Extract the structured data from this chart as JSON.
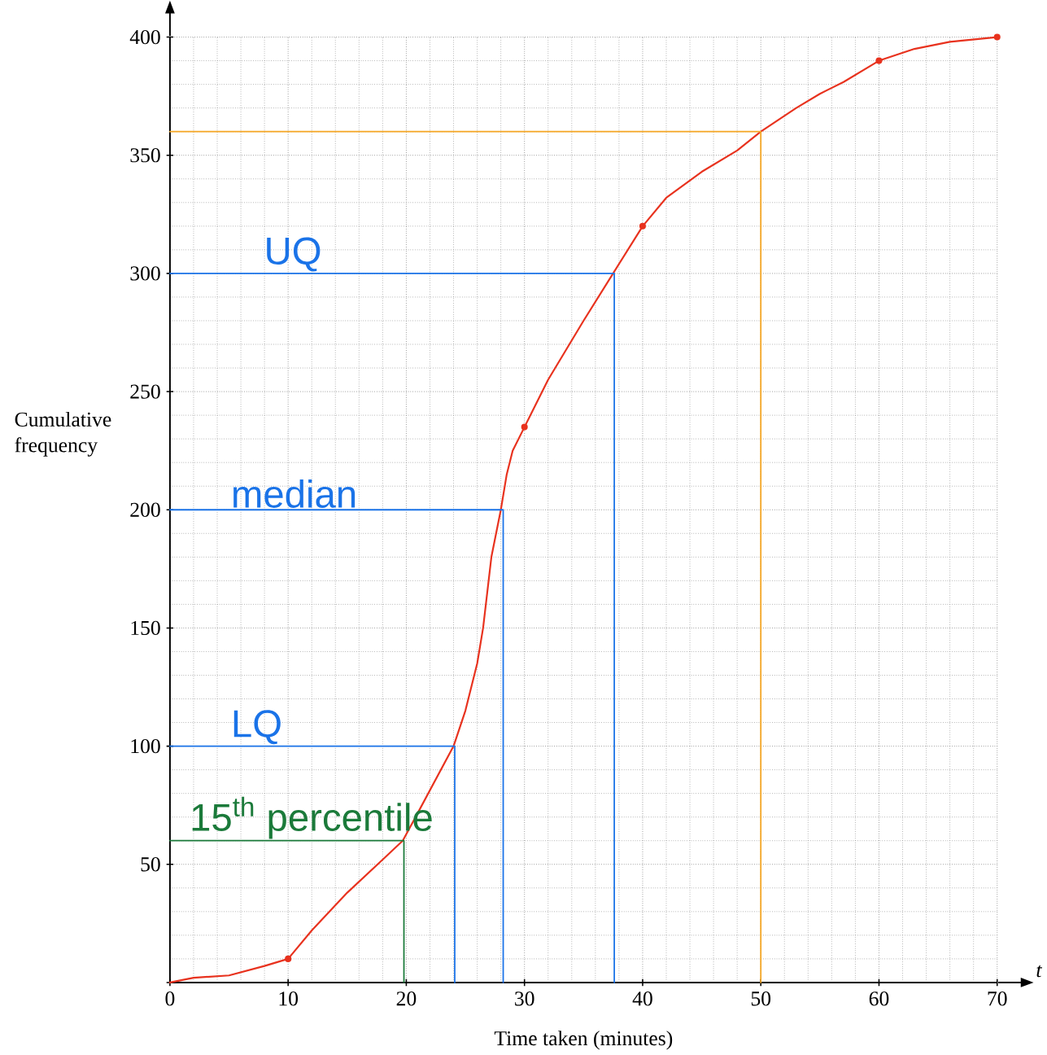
{
  "chart_data": {
    "type": "line",
    "xlabel": "Time taken (minutes)",
    "ylabel": "Cumulative frequency",
    "xlim": [
      0,
      70
    ],
    "ylim": [
      0,
      400
    ],
    "xticks": [
      0,
      10,
      20,
      30,
      40,
      50,
      60,
      70
    ],
    "yticks": [
      {
        "value": 0,
        "label": null
      },
      50,
      100,
      150,
      200,
      250,
      300,
      350,
      400
    ],
    "grid": true,
    "series": [
      {
        "color": "#e8321e",
        "marker": "none",
        "x": [
          0,
          2,
          5,
          8,
          10,
          12,
          15,
          18,
          19.7,
          21,
          22.5,
          24,
          25,
          26,
          26.5,
          27.2,
          28,
          28.5,
          29,
          30,
          32,
          35,
          37.5,
          40,
          42,
          45,
          48,
          50,
          53,
          55,
          57,
          60,
          63,
          66,
          70
        ],
        "values": [
          0,
          2,
          3,
          7,
          10,
          22,
          38,
          52,
          60,
          72,
          86,
          100,
          115,
          135,
          150,
          180,
          200,
          215,
          225,
          235,
          255,
          280,
          300,
          320,
          332,
          343,
          352,
          360,
          370,
          376,
          381,
          390,
          395,
          398,
          400
        ]
      },
      {
        "type": "scatter",
        "color": "#e8321e",
        "marker": "circle",
        "x": [
          10,
          30,
          40,
          60,
          70
        ],
        "values": [
          10,
          235,
          320,
          390,
          400
        ]
      },
      {
        "color": "#f5a623",
        "marker": "none",
        "x": [
          0,
          50,
          50
        ],
        "values": [
          360,
          360,
          0
        ]
      },
      {
        "color": "#1a73e8",
        "marker": "none",
        "x": [
          0,
          37.6,
          37.6
        ],
        "values": [
          300,
          300,
          0
        ]
      },
      {
        "color": "#1a73e8",
        "marker": "none",
        "x": [
          0,
          28.2,
          28.2
        ],
        "values": [
          200,
          200,
          0
        ]
      },
      {
        "color": "#1a73e8",
        "marker": "none",
        "x": [
          0,
          24.1,
          24.1
        ],
        "values": [
          100,
          100,
          0
        ]
      },
      {
        "color": "#1b7a3a",
        "marker": "none",
        "x": [
          0,
          19.8,
          19.8
        ],
        "values": [
          60,
          60,
          0
        ]
      }
    ],
    "annotations": [
      {
        "text": "UQ",
        "x": 7.8,
        "y": 300
      },
      {
        "text": "median",
        "x": 5,
        "y": 200
      },
      {
        "text": "LQ",
        "x": 5,
        "y": 100
      },
      {
        "text": "15$^{th}$ percentile",
        "x": 1.5,
        "y": 60
      },
      "t"
    ]
  }
}
